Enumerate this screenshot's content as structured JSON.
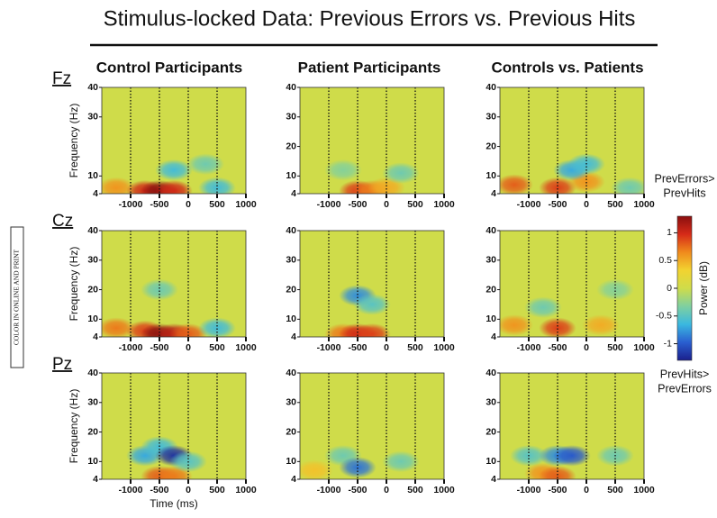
{
  "title": "Stimulus-locked Data: Previous Errors vs. Previous Hits",
  "column_titles": [
    "Control Participants",
    "Patient Participants",
    "Controls vs. Patients"
  ],
  "row_labels": [
    "Fz",
    "Cz",
    "Pz"
  ],
  "side_note": "COLOR IN ONLINE AND PRINT",
  "colorbar": {
    "label": "Power (dB)",
    "top_label": [
      "PrevErrors>",
      "PrevHits"
    ],
    "bottom_label": [
      "PrevHits>",
      "PrevErrors"
    ],
    "ylim": [
      -1.3,
      1.3
    ],
    "yticks": [
      1,
      0.5,
      0,
      -0.5,
      -1
    ],
    "colormap": [
      "#1a1f8c",
      "#2a5fd0",
      "#3ab8e0",
      "#7fd0a0",
      "#cfdc4a",
      "#f2d330",
      "#f08a1c",
      "#d62a18",
      "#8a0f0f"
    ]
  },
  "chart_data": [
    {
      "type": "heatmap",
      "ylabel": "Frequency (Hz)",
      "xlim": [
        -1500,
        1000
      ],
      "xticks": [
        -1000,
        -500,
        0,
        500,
        1000
      ],
      "ylim": [
        4,
        40
      ],
      "yticks": [
        4,
        10,
        30,
        40
      ],
      "event_lines": [
        -1000,
        -500,
        0,
        500
      ],
      "spots": [
        {
          "time": -1250,
          "freq": 6,
          "power": 0.6
        },
        {
          "time": -750,
          "freq": 5,
          "power": 1.0
        },
        {
          "time": -500,
          "freq": 5,
          "power": 1.3
        },
        {
          "time": -250,
          "freq": 5,
          "power": 1.0
        },
        {
          "time": -250,
          "freq": 12,
          "power": -0.6
        },
        {
          "time": 300,
          "freq": 14,
          "power": -0.4
        },
        {
          "time": 500,
          "freq": 6,
          "power": -0.6
        }
      ]
    },
    {
      "type": "heatmap",
      "xlim": [
        -1500,
        1000
      ],
      "xticks": [
        -1000,
        -500,
        0,
        500,
        1000
      ],
      "ylim": [
        4,
        40
      ],
      "yticks": [
        4,
        10,
        20,
        30,
        40
      ],
      "event_lines": [
        -1000,
        -500,
        0,
        500
      ],
      "spots": [
        {
          "time": -500,
          "freq": 5,
          "power": 0.9
        },
        {
          "time": -250,
          "freq": 5,
          "power": 0.7
        },
        {
          "time": 0,
          "freq": 6,
          "power": 0.5
        },
        {
          "time": -750,
          "freq": 12,
          "power": -0.3
        },
        {
          "time": 250,
          "freq": 11,
          "power": -0.4
        }
      ]
    },
    {
      "type": "heatmap",
      "xlim": [
        -1500,
        1000
      ],
      "xticks": [
        -1000,
        -500,
        0,
        500,
        1000
      ],
      "ylim": [
        4,
        40
      ],
      "yticks": [
        4,
        10,
        20,
        30,
        40
      ],
      "event_lines": [
        -1000,
        -500,
        0,
        500
      ],
      "spots": [
        {
          "time": -1250,
          "freq": 7,
          "power": 0.8
        },
        {
          "time": -500,
          "freq": 6,
          "power": 0.9
        },
        {
          "time": 0,
          "freq": 8,
          "power": 0.6
        },
        {
          "time": -250,
          "freq": 12,
          "power": -0.7
        },
        {
          "time": 0,
          "freq": 14,
          "power": -0.6
        },
        {
          "time": 750,
          "freq": 6,
          "power": -0.4
        }
      ]
    },
    {
      "type": "heatmap",
      "ylabel": "Frequency (Hz)",
      "xlim": [
        -1500,
        1000
      ],
      "xticks": [
        -1000,
        -500,
        0,
        500,
        1000
      ],
      "ylim": [
        4,
        40
      ],
      "yticks": [
        4,
        10,
        20,
        30,
        40
      ],
      "event_lines": [
        -1000,
        -500,
        0,
        500
      ],
      "spots": [
        {
          "time": -1250,
          "freq": 7,
          "power": 0.7
        },
        {
          "time": -750,
          "freq": 6,
          "power": 0.9
        },
        {
          "time": -500,
          "freq": 5,
          "power": 1.3
        },
        {
          "time": -250,
          "freq": 5,
          "power": 1.1
        },
        {
          "time": 0,
          "freq": 5,
          "power": 0.8
        },
        {
          "time": -500,
          "freq": 20,
          "power": -0.4
        },
        {
          "time": 500,
          "freq": 7,
          "power": -0.6
        }
      ]
    },
    {
      "type": "heatmap",
      "xlim": [
        -1500,
        1000
      ],
      "xticks": [
        -1000,
        -500,
        0,
        500,
        1000
      ],
      "ylim": [
        4,
        40
      ],
      "yticks": [
        4,
        10,
        20,
        30,
        40
      ],
      "event_lines": [
        -1000,
        -500,
        0,
        500
      ],
      "spots": [
        {
          "time": -750,
          "freq": 5,
          "power": 0.7
        },
        {
          "time": -500,
          "freq": 5,
          "power": 1.0
        },
        {
          "time": -250,
          "freq": 5,
          "power": 0.9
        },
        {
          "time": -500,
          "freq": 18,
          "power": -0.8
        },
        {
          "time": -250,
          "freq": 15,
          "power": -0.5
        }
      ]
    },
    {
      "type": "heatmap",
      "xlim": [
        -1500,
        1000
      ],
      "xticks": [
        -1000,
        -500,
        0,
        500,
        1000
      ],
      "ylim": [
        4,
        40
      ],
      "yticks": [
        4,
        10,
        20,
        30,
        40
      ],
      "event_lines": [
        -1000,
        -500,
        0,
        500
      ],
      "spots": [
        {
          "time": -1250,
          "freq": 8,
          "power": 0.6
        },
        {
          "time": -500,
          "freq": 7,
          "power": 0.9
        },
        {
          "time": 250,
          "freq": 8,
          "power": 0.5
        },
        {
          "time": -750,
          "freq": 14,
          "power": -0.4
        },
        {
          "time": 500,
          "freq": 20,
          "power": -0.3
        }
      ]
    },
    {
      "type": "heatmap",
      "ylabel": "Frequency (Hz)",
      "xlabel": "Time (ms)",
      "xlim": [
        -1500,
        1000
      ],
      "xticks": [
        -1000,
        -500,
        0,
        500,
        1000
      ],
      "ylim": [
        4,
        40
      ],
      "yticks": [
        4,
        10,
        20,
        30,
        40
      ],
      "event_lines": [
        -1000,
        -500,
        0,
        500
      ],
      "spots": [
        {
          "time": -500,
          "freq": 5,
          "power": 0.8
        },
        {
          "time": -250,
          "freq": 5,
          "power": 0.7
        },
        {
          "time": -750,
          "freq": 12,
          "power": -0.7
        },
        {
          "time": -500,
          "freq": 15,
          "power": -0.6
        },
        {
          "time": -250,
          "freq": 12,
          "power": -1.2
        },
        {
          "time": 0,
          "freq": 10,
          "power": -0.5
        }
      ]
    },
    {
      "type": "heatmap",
      "xlim": [
        -1500,
        1000
      ],
      "xticks": [
        -1000,
        -500,
        0,
        500,
        1000
      ],
      "ylim": [
        4,
        40
      ],
      "yticks": [
        4,
        10,
        20,
        30,
        40
      ],
      "event_lines": [
        -1000,
        -500,
        0,
        500
      ],
      "spots": [
        {
          "time": -1250,
          "freq": 7,
          "power": 0.4
        },
        {
          "time": -750,
          "freq": 12,
          "power": -0.4
        },
        {
          "time": -500,
          "freq": 8,
          "power": -0.9
        },
        {
          "time": 250,
          "freq": 10,
          "power": -0.4
        }
      ]
    },
    {
      "type": "heatmap",
      "xlim": [
        -1500,
        1000
      ],
      "xticks": [
        -1000,
        -500,
        0,
        500,
        1000
      ],
      "ylim": [
        4,
        40
      ],
      "yticks": [
        4,
        10,
        20,
        30,
        40
      ],
      "event_lines": [
        -1000,
        -500,
        0,
        500
      ],
      "spots": [
        {
          "time": -750,
          "freq": 6,
          "power": 0.6
        },
        {
          "time": -500,
          "freq": 5,
          "power": 0.8
        },
        {
          "time": -1000,
          "freq": 12,
          "power": -0.5
        },
        {
          "time": -500,
          "freq": 12,
          "power": -0.8
        },
        {
          "time": -250,
          "freq": 12,
          "power": -1.0
        },
        {
          "time": 500,
          "freq": 12,
          "power": -0.4
        }
      ]
    }
  ]
}
